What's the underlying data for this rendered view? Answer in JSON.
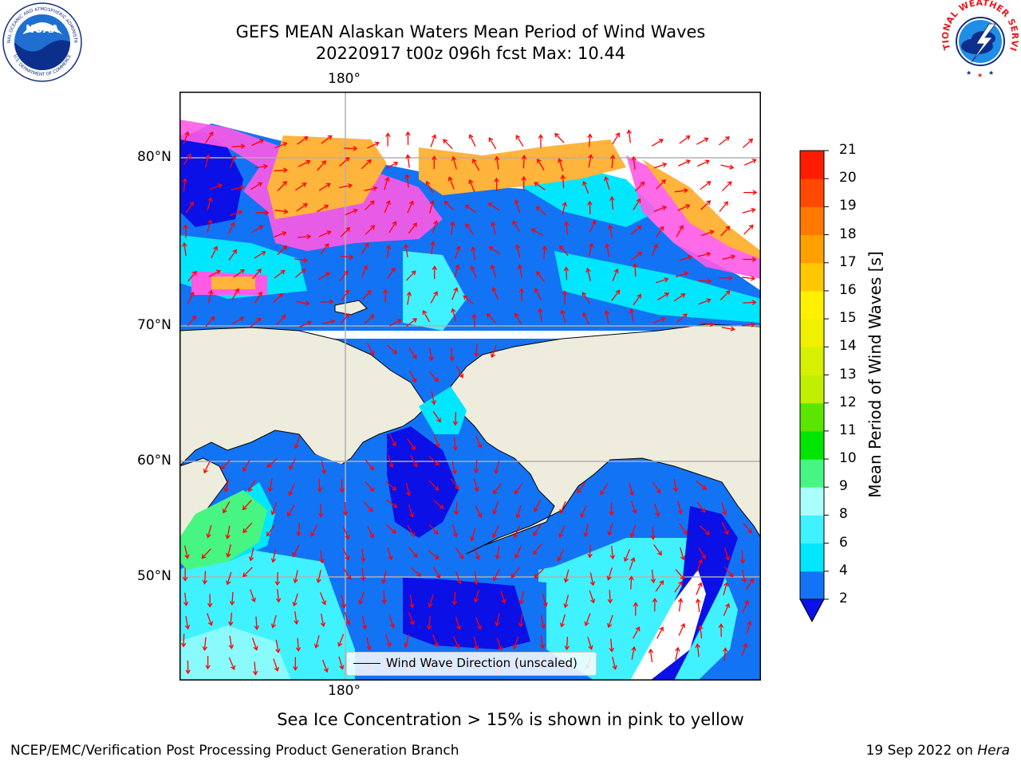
{
  "title": {
    "line1": "GEFS MEAN Alaskan Waters Mean Period of Wind Waves",
    "line2": "20220917 t00z 096h fcst   Max: 10.44"
  },
  "axes": {
    "top_lon_label": "180°",
    "bottom_lon_label": "180°",
    "lat_labels": [
      "80°N",
      "70°N",
      "60°N",
      "50°N"
    ]
  },
  "legend": {
    "label": "Wind Wave Direction (unscaled)"
  },
  "colorbar": {
    "title": "Mean Period of Wind Waves [s]",
    "ticks": [
      "2",
      "4",
      "6",
      "8",
      "9",
      "10",
      "11",
      "12",
      "13",
      "14",
      "15",
      "16",
      "17",
      "18",
      "19",
      "20",
      "21"
    ],
    "colors": [
      "#1373f5",
      "#00e6ff",
      "#40f2ff",
      "#a8fffc",
      "#47f582",
      "#00e600",
      "#5be600",
      "#c0f000",
      "#d7f000",
      "#f0f000",
      "#fff000",
      "#ffc800",
      "#ffa000",
      "#ff7800",
      "#ff4800",
      "#ff1c00"
    ],
    "extend_color": "#0b10e6"
  },
  "caption": "Sea Ice Concentration > 15% is shown in pink to yellow",
  "footer": {
    "left": "NCEP/EMC/Verification Post Processing Product Generation Branch",
    "right_prefix": "19 Sep 2022 on ",
    "right_host": "Hera"
  },
  "logos": {
    "noaa_text": "NOAA",
    "noaa_ring_top": "NATIONAL OCEANIC AND ATMOSPHERIC ADMINISTRATION",
    "noaa_ring_bottom": "U.S. DEPARTMENT OF COMMERCE",
    "nws_ring": "NATIONAL WEATHER SERVICE"
  },
  "colors": {
    "land": "#eeecdc",
    "ice_pink": "#ff5ae6",
    "ice_yellow": "#ffb43c",
    "arrow": "#ff0000",
    "grid": "#b0b0b0"
  }
}
